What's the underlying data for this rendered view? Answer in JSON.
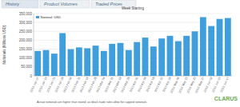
{
  "tabs": [
    "History",
    "Product Volumes",
    "Traded Prices"
  ],
  "footer": "Actual notionals are higher than stated, as block trade rules allow for capped notionals.",
  "logo": "CLARUS",
  "chart_data": {
    "type": "bar",
    "x_label": "Week Starting",
    "y_label": "Notionals (Millions USD)",
    "categories": [
      "2013 Jan 07",
      "2013 Jan 14",
      "2013 Jan 21",
      "2013 Jan 28",
      "2013 Feb 04",
      "2013 Feb 11",
      "2013 Feb 18",
      "2013 Feb 25",
      "2013 Mar 04",
      "2013 Mar 11",
      "2013 Mar 18",
      "2013 Mar 25",
      "2013 Apr 01",
      "2013 Apr 08",
      "2013 Apr 15",
      "2013 Apr 22",
      "2013 Apr 29",
      "2013 May 06",
      "2013 May 13",
      "2013 May 20",
      "2013 May 27",
      "2013 Jun 03",
      "2013 Jun 10",
      "2013 Jun 17"
    ],
    "series": [
      {
        "name": "Notional: USD",
        "color": "#3f9fdc",
        "values": [
          140000,
          145000,
          125000,
          240000,
          150000,
          160000,
          155000,
          170000,
          140000,
          180000,
          185000,
          145000,
          190000,
          215000,
          165000,
          210000,
          225000,
          195000,
          225000,
          250000,
          330000,
          280000,
          320000,
          325000
        ]
      }
    ],
    "ylim": [
      0,
      350000
    ],
    "yticks": [
      0,
      {
        "value": 50000,
        "label": "50,000"
      },
      {
        "value": 100000,
        "label": "100,000"
      },
      {
        "value": 150000,
        "label": "150,000"
      },
      {
        "value": 200000,
        "label": "200,000"
      },
      {
        "value": 250000,
        "label": "250,000"
      },
      {
        "value": 300000,
        "label": "300,000"
      },
      {
        "value": 350000,
        "label": "350,000"
      }
    ],
    "grid": true,
    "legend": "top-left"
  }
}
